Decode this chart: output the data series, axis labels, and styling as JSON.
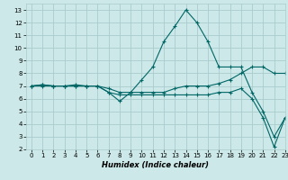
{
  "title": "",
  "xlabel": "Humidex (Indice chaleur)",
  "ylabel": "",
  "background_color": "#cce8e8",
  "grid_color": "#aacccc",
  "line_color": "#006666",
  "xlim": [
    -0.5,
    23
  ],
  "ylim": [
    2,
    13.5
  ],
  "xticks": [
    0,
    1,
    2,
    3,
    4,
    5,
    6,
    7,
    8,
    9,
    10,
    11,
    12,
    13,
    14,
    15,
    16,
    17,
    18,
    19,
    20,
    21,
    22,
    23
  ],
  "yticks": [
    2,
    3,
    4,
    5,
    6,
    7,
    8,
    9,
    10,
    11,
    12,
    13
  ],
  "lines": [
    {
      "x": [
        0,
        1,
        2,
        3,
        4,
        5,
        6,
        7,
        8,
        9,
        10,
        11,
        12,
        13,
        14,
        15,
        16,
        17,
        18,
        19,
        20,
        21,
        22,
        23
      ],
      "y": [
        7,
        7.1,
        7,
        7,
        7,
        7,
        7,
        6.5,
        5.8,
        6.5,
        7.5,
        8.5,
        10.5,
        11.7,
        13,
        12,
        10.5,
        8.5,
        8.5,
        8.5,
        6.5,
        5,
        3,
        4.5
      ]
    },
    {
      "x": [
        0,
        1,
        2,
        3,
        4,
        5,
        6,
        7,
        8,
        9,
        10,
        11,
        12,
        13,
        14,
        15,
        16,
        17,
        18,
        19,
        20,
        21,
        22,
        23
      ],
      "y": [
        7,
        7.1,
        7,
        7,
        7.1,
        7,
        7,
        6.8,
        6.5,
        6.5,
        6.5,
        6.5,
        6.5,
        6.8,
        7,
        7,
        7,
        7.2,
        7.5,
        8,
        8.5,
        8.5,
        8,
        8
      ]
    },
    {
      "x": [
        0,
        1,
        2,
        3,
        4,
        5,
        6,
        7,
        8,
        9,
        10,
        11,
        12,
        13,
        14,
        15,
        16,
        17,
        18,
        19,
        20,
        21,
        22,
        23
      ],
      "y": [
        7,
        7,
        7,
        7,
        7,
        7,
        7,
        6.5,
        6.3,
        6.3,
        6.3,
        6.3,
        6.3,
        6.3,
        6.3,
        6.3,
        6.3,
        6.5,
        6.5,
        6.8,
        6,
        4.5,
        2.2,
        4.5
      ]
    }
  ]
}
